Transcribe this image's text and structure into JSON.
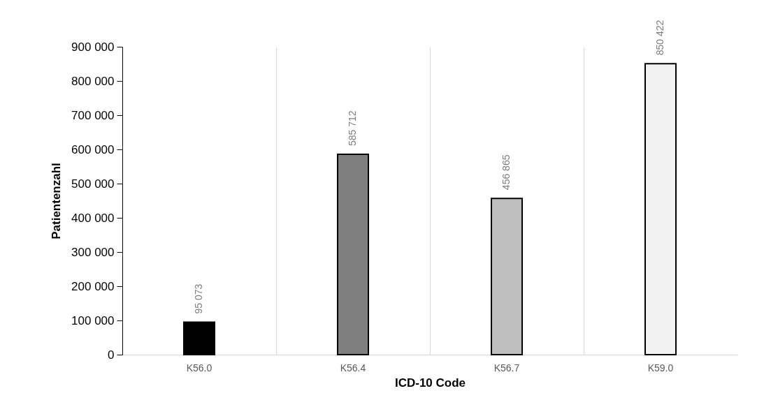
{
  "chart_data": {
    "type": "bar",
    "xlabel": "ICD-10 Code",
    "ylabel": "Patientenzahl",
    "categories": [
      "K56.0",
      "K56.4",
      "K56.7",
      "K59.0"
    ],
    "values": [
      95073,
      585712,
      456865,
      850422
    ],
    "colors": [
      "#000000",
      "#7f7f7f",
      "#bfbfbf",
      "#f2f2f2"
    ],
    "value_labels": [
      "95 073",
      "585 712",
      "456 865",
      "850 422"
    ],
    "ylim": [
      0,
      900000
    ],
    "yticks": [
      {
        "value": 0,
        "label": "0"
      },
      {
        "value": 100000,
        "label": "100 000"
      },
      {
        "value": 200000,
        "label": "200 000"
      },
      {
        "value": 300000,
        "label": "300 000"
      },
      {
        "value": 400000,
        "label": "400 000"
      },
      {
        "value": 500000,
        "label": "500 000"
      },
      {
        "value": 600000,
        "label": "600 000"
      },
      {
        "value": 700000,
        "label": "700 000"
      },
      {
        "value": 800000,
        "label": "800 000"
      },
      {
        "value": 900000,
        "label": "900 000"
      }
    ],
    "grid": "x"
  }
}
